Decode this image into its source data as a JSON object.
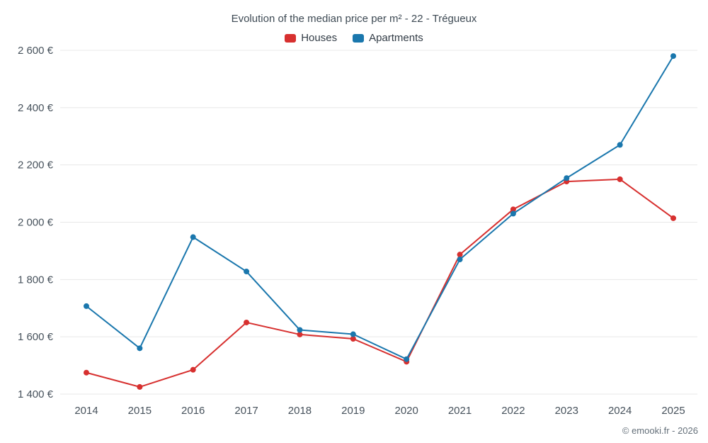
{
  "header": {
    "title": "Evolution of the median price per m² - 22 - Trégueux"
  },
  "footer": {
    "credit": "© emooki.fr - 2026"
  },
  "colors": {
    "houses": "#d7302f",
    "apartments": "#1a77ad",
    "gridline": "#e8e8e8",
    "text": "#47525c"
  },
  "chart_data": {
    "type": "line",
    "title": "Evolution of the median price per m² - 22 - Trégueux",
    "xlabel": "",
    "ylabel": "",
    "x": [
      2014,
      2015,
      2016,
      2017,
      2018,
      2019,
      2020,
      2021,
      2022,
      2023,
      2024,
      2025
    ],
    "series": [
      {
        "name": "Houses",
        "color": "#d7302f",
        "values": [
          1475,
          1425,
          1485,
          1650,
          1608,
          1593,
          1513,
          1887,
          2045,
          2142,
          2150,
          2014
        ]
      },
      {
        "name": "Apartments",
        "color": "#1a77ad",
        "values": [
          1707,
          1560,
          1948,
          1828,
          1624,
          1609,
          1522,
          1870,
          2030,
          2154,
          2270,
          2580
        ]
      }
    ],
    "ylim": [
      1400,
      2600
    ],
    "yticks": [
      {
        "value": 1400,
        "label": "1 400 €"
      },
      {
        "value": 1600,
        "label": "1 600 €"
      },
      {
        "value": 1800,
        "label": "1 800 €"
      },
      {
        "value": 2000,
        "label": "2 000 €"
      },
      {
        "value": 2200,
        "label": "2 200 €"
      },
      {
        "value": 2400,
        "label": "2 400 €"
      },
      {
        "value": 2600,
        "label": "2 600 €"
      }
    ],
    "grid": "horizontal",
    "legend_position": "top"
  }
}
